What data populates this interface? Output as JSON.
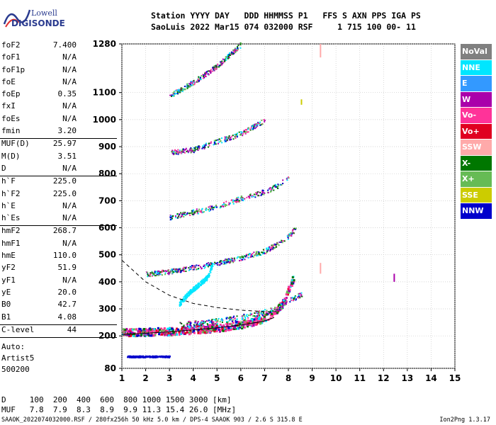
{
  "logo": {
    "line1": "Lowell",
    "line2": "DIGISONDE"
  },
  "header": {
    "line1": "Station YYYY DAY   DDD HHMMSS P1   FFS S AXN PPS IGA PS",
    "line2": "SaoLuis 2022 Mar15 074 032000 RSF     1 715 100 00- 11"
  },
  "params": [
    {
      "label": "foF2",
      "value": "7.400"
    },
    {
      "label": "foF1",
      "value": "N/A"
    },
    {
      "label": "foF1p",
      "value": "N/A"
    },
    {
      "label": "foE",
      "value": "N/A"
    },
    {
      "label": "foEp",
      "value": "0.35"
    },
    {
      "label": "fxI",
      "value": "N/A"
    },
    {
      "label": "foEs",
      "value": "N/A"
    },
    {
      "label": "fmin",
      "value": "3.20",
      "sep": true
    },
    {
      "label": "MUF(D)",
      "value": "25.97"
    },
    {
      "label": "M(D)",
      "value": "3.51"
    },
    {
      "label": "D",
      "value": "N/A",
      "sep": true
    },
    {
      "label": "h`F",
      "value": "225.0"
    },
    {
      "label": "h`F2",
      "value": "225.0"
    },
    {
      "label": "h`E",
      "value": "N/A"
    },
    {
      "label": "h`Es",
      "value": "N/A",
      "sep": true
    },
    {
      "label": "hmF2",
      "value": "268.7"
    },
    {
      "label": "hmF1",
      "value": "N/A"
    },
    {
      "label": "hmE",
      "value": "110.0"
    },
    {
      "label": "yF2",
      "value": "51.9"
    },
    {
      "label": "yF1",
      "value": "N/A"
    },
    {
      "label": "yE",
      "value": "20.0"
    },
    {
      "label": "B0",
      "value": "42.7"
    },
    {
      "label": "B1",
      "value": "4.08",
      "sep": true
    },
    {
      "label": "C-level",
      "value": "44",
      "sep": true
    }
  ],
  "auto": {
    "line1": "Auto:",
    "line2": "Artist5",
    "line3": "500200"
  },
  "muf_table": {
    "d_row": "D     100  200  400  600  800 1000 1500 3000 [km]",
    "muf_row": "MUF   7.8  7.9  8.3  8.9  9.9 11.3 15.4 26.0 [MHz]"
  },
  "footer": "SAAOK_2022074032000.RSF / 280fx256h 50 kHz 5.0 km / DPS-4 SAAOK 903 / 2.6 S 315.8 E",
  "version": "Ion2Png 1.3.17",
  "legend": [
    {
      "label": "NoVal",
      "color": "#808080"
    },
    {
      "label": "NNE",
      "color": "#00e6ff"
    },
    {
      "label": "E",
      "color": "#3399ff"
    },
    {
      "label": "W",
      "color": "#aa00aa"
    },
    {
      "label": "Vo-",
      "color": "#ff3399"
    },
    {
      "label": "Vo+",
      "color": "#e00020"
    },
    {
      "label": "SSW",
      "color": "#ffaaaa"
    },
    {
      "label": "X-",
      "color": "#007700"
    },
    {
      "label": "X+",
      "color": "#66bb55"
    },
    {
      "label": "SSE",
      "color": "#cccc00"
    },
    {
      "label": "NNW",
      "color": "#0000cc"
    }
  ],
  "chart_data": {
    "type": "scatter",
    "xlim": [
      1,
      15
    ],
    "ylim": [
      80,
      1280
    ],
    "x_ticks": [
      1,
      2,
      3,
      4,
      5,
      6,
      7,
      8,
      9,
      10,
      11,
      12,
      13,
      14,
      15
    ],
    "x_tick_labels": [
      "1",
      "2",
      "3",
      "4",
      "5",
      "6",
      "7",
      "8",
      "9",
      "10",
      "11",
      "12",
      "13",
      "14",
      "15"
    ],
    "y_ticks": [
      80,
      200,
      300,
      400,
      500,
      600,
      700,
      800,
      900,
      1000,
      1100,
      1280
    ],
    "y_tick_labels": [
      "80",
      "200",
      "300",
      "400",
      "500",
      "600",
      "700",
      "800",
      "900",
      "1000",
      "1100",
      "1280"
    ],
    "grid": true,
    "traces": [
      {
        "name": "o-trace 1",
        "x": [
          1.0,
          2.0,
          3.0,
          4.0,
          5.0,
          6.0,
          6.8,
          7.4,
          7.8,
          8.0,
          8.2
        ],
        "y": [
          215,
          218,
          220,
          225,
          232,
          245,
          262,
          290,
          330,
          380,
          420
        ]
      },
      {
        "name": "o-trace 2",
        "x": [
          2.0,
          3.0,
          4.0,
          5.0,
          6.0,
          7.0,
          7.6,
          8.0,
          8.3
        ],
        "y": [
          430,
          440,
          455,
          470,
          490,
          515,
          545,
          570,
          600
        ]
      },
      {
        "name": "o-trace 3",
        "x": [
          3.0,
          4.0,
          5.0,
          6.0,
          7.0,
          7.6,
          8.0
        ],
        "y": [
          640,
          660,
          680,
          710,
          735,
          760,
          790
        ]
      },
      {
        "name": "o-trace 4",
        "x": [
          3.0,
          4.0,
          5.0,
          6.0,
          7.0
        ],
        "y": [
          880,
          890,
          920,
          950,
          1000
        ]
      },
      {
        "name": "o-trace 5",
        "x": [
          3.0,
          4.0,
          5.0,
          6.0
        ],
        "y": [
          1090,
          1140,
          1200,
          1280
        ]
      },
      {
        "name": "x-trace",
        "x": [
          3.4,
          4.4,
          5.4,
          6.4,
          7.4,
          8.0,
          8.6
        ],
        "y": [
          245,
          250,
          262,
          278,
          300,
          330,
          360
        ]
      },
      {
        "name": "lower echoes",
        "x": [
          1.2,
          1.6,
          2.0,
          2.4,
          2.8,
          3.0
        ],
        "y": [
          125,
          125,
          125,
          125,
          125,
          125
        ]
      },
      {
        "name": "oblique NNE",
        "x": [
          3.4,
          3.8,
          4.2,
          4.6,
          4.8
        ],
        "y": [
          320,
          360,
          390,
          420,
          470
        ]
      }
    ],
    "profile_line": {
      "x": [
        1.0,
        2.0,
        3.0,
        4.0,
        5.0,
        6.0,
        7.0,
        7.4
      ],
      "y": [
        205,
        210,
        215,
        222,
        230,
        240,
        255,
        268
      ]
    },
    "dashed_line": {
      "x": [
        1.0,
        2.0,
        3.0,
        4.0,
        5.0,
        6.0,
        7.0,
        7.5
      ],
      "y": [
        480,
        400,
        350,
        320,
        305,
        295,
        290,
        290
      ]
    },
    "vertical_marks": [
      {
        "x": 8.55,
        "y": [
          1055,
          1075
        ],
        "color": "#cccc00"
      },
      {
        "x": 9.35,
        "y": [
          1230,
          1280
        ],
        "color": "#ffaaaa"
      },
      {
        "x": 9.35,
        "y": [
          430,
          470
        ],
        "color": "#ffaaaa"
      },
      {
        "x": 12.45,
        "y": [
          400,
          430
        ],
        "color": "#aa00aa"
      }
    ]
  }
}
